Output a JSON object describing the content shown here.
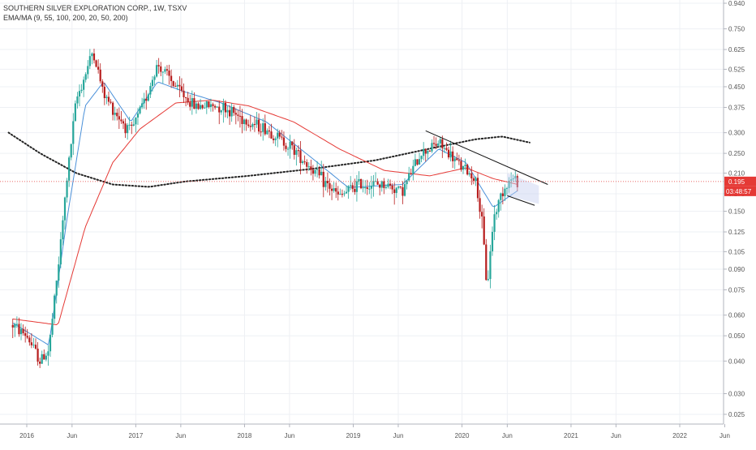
{
  "chart_data": {
    "type": "candlestick",
    "title": "SOUTHERN SILVER EXPLORATION CORP., 1W, TSXV",
    "indicator_label": "EMA/MA (9, 55, 100, 200, 20, 50, 200)",
    "y_scale": "log",
    "ylim": [
      0.023,
      0.95
    ],
    "y_ticks": [
      0.025,
      0.03,
      0.04,
      0.05,
      0.06,
      0.075,
      0.09,
      0.105,
      0.125,
      0.15,
      0.175,
      0.21,
      0.25,
      0.3,
      0.375,
      0.45,
      0.525,
      0.625,
      0.75,
      0.94
    ],
    "y_tick_labels": [
      "0.025",
      "0.030",
      "0.040",
      "0.050",
      "0.060",
      "0.075",
      "0.090",
      "0.105",
      "0.125",
      "0.150",
      "0.175",
      "0.210",
      "0.250",
      "0.300",
      "0.375",
      "0.450",
      "0.525",
      "0.625",
      "0.750",
      "0.940"
    ],
    "x_ticks": [
      {
        "label": "2016",
        "date": "2016-01-01"
      },
      {
        "label": "Jun",
        "date": "2016-06-01"
      },
      {
        "label": "2017",
        "date": "2017-01-01"
      },
      {
        "label": "Jun",
        "date": "2017-06-01"
      },
      {
        "label": "2018",
        "date": "2018-01-01"
      },
      {
        "label": "Jun",
        "date": "2018-06-01"
      },
      {
        "label": "2019",
        "date": "2019-01-01"
      },
      {
        "label": "Jun",
        "date": "2019-06-01"
      },
      {
        "label": "2020",
        "date": "2020-01-01"
      },
      {
        "label": "Jun",
        "date": "2020-06-01"
      },
      {
        "label": "2021",
        "date": "2021-01-01"
      },
      {
        "label": "Jun",
        "date": "2021-06-01"
      },
      {
        "label": "2022",
        "date": "2022-01-01"
      },
      {
        "label": "Jun",
        "date": "2022-06-01"
      }
    ],
    "last_price": 0.195,
    "last_price_label": "0.195",
    "countdown_label": "03:48:57",
    "colors": {
      "up": "#26a69a",
      "down": "#b71c1c",
      "ema_fast": "#4a90d9",
      "ma_slow": "#e53935",
      "ma_200": "#222222",
      "trendline": "#111111",
      "price_line": "#e53935",
      "channel_fill": "#c5cff0"
    },
    "price_path": [
      {
        "date": "2015-11-15",
        "price": 0.055
      },
      {
        "date": "2016-01-01",
        "price": 0.05
      },
      {
        "date": "2016-02-15",
        "price": 0.04
      },
      {
        "date": "2016-03-15",
        "price": 0.044
      },
      {
        "date": "2016-04-15",
        "price": 0.09
      },
      {
        "date": "2016-05-15",
        "price": 0.2
      },
      {
        "date": "2016-06-15",
        "price": 0.4
      },
      {
        "date": "2016-07-15",
        "price": 0.5
      },
      {
        "date": "2016-08-10",
        "price": 0.62
      },
      {
        "date": "2016-09-15",
        "price": 0.42
      },
      {
        "date": "2016-11-01",
        "price": 0.35
      },
      {
        "date": "2016-12-15",
        "price": 0.3
      },
      {
        "date": "2017-02-01",
        "price": 0.4
      },
      {
        "date": "2017-03-15",
        "price": 0.55
      },
      {
        "date": "2017-05-15",
        "price": 0.45
      },
      {
        "date": "2017-07-15",
        "price": 0.38
      },
      {
        "date": "2017-10-15",
        "price": 0.38
      },
      {
        "date": "2018-01-15",
        "price": 0.33
      },
      {
        "date": "2018-03-15",
        "price": 0.31
      },
      {
        "date": "2018-06-15",
        "price": 0.26
      },
      {
        "date": "2018-09-15",
        "price": 0.2
      },
      {
        "date": "2018-11-15",
        "price": 0.17
      },
      {
        "date": "2019-01-15",
        "price": 0.19
      },
      {
        "date": "2019-04-15",
        "price": 0.19
      },
      {
        "date": "2019-06-15",
        "price": 0.18
      },
      {
        "date": "2019-08-15",
        "price": 0.25
      },
      {
        "date": "2019-10-15",
        "price": 0.275
      },
      {
        "date": "2019-12-15",
        "price": 0.23
      },
      {
        "date": "2020-02-15",
        "price": 0.2
      },
      {
        "date": "2020-03-10",
        "price": 0.13
      },
      {
        "date": "2020-03-25",
        "price": 0.075
      },
      {
        "date": "2020-04-15",
        "price": 0.14
      },
      {
        "date": "2020-05-15",
        "price": 0.18
      },
      {
        "date": "2020-06-15",
        "price": 0.2
      },
      {
        "date": "2020-07-06",
        "price": 0.195
      }
    ],
    "ema_fast": [
      {
        "date": "2015-11-15",
        "price": 0.056
      },
      {
        "date": "2016-03-15",
        "price": 0.046
      },
      {
        "date": "2016-05-15",
        "price": 0.14
      },
      {
        "date": "2016-07-15",
        "price": 0.38
      },
      {
        "date": "2016-09-15",
        "price": 0.47
      },
      {
        "date": "2016-12-15",
        "price": 0.33
      },
      {
        "date": "2017-03-15",
        "price": 0.47
      },
      {
        "date": "2017-06-15",
        "price": 0.43
      },
      {
        "date": "2017-10-15",
        "price": 0.39
      },
      {
        "date": "2018-03-15",
        "price": 0.33
      },
      {
        "date": "2018-08-15",
        "price": 0.24
      },
      {
        "date": "2018-12-15",
        "price": 0.185
      },
      {
        "date": "2019-06-15",
        "price": 0.19
      },
      {
        "date": "2019-10-15",
        "price": 0.26
      },
      {
        "date": "2020-01-15",
        "price": 0.23
      },
      {
        "date": "2020-04-15",
        "price": 0.155
      },
      {
        "date": "2020-07-06",
        "price": 0.18
      }
    ],
    "ma_slow": [
      {
        "date": "2015-11-15",
        "price": 0.058
      },
      {
        "date": "2016-04-15",
        "price": 0.055
      },
      {
        "date": "2016-07-15",
        "price": 0.13
      },
      {
        "date": "2016-10-15",
        "price": 0.23
      },
      {
        "date": "2017-01-15",
        "price": 0.31
      },
      {
        "date": "2017-05-15",
        "price": 0.39
      },
      {
        "date": "2017-09-15",
        "price": 0.4
      },
      {
        "date": "2018-01-15",
        "price": 0.38
      },
      {
        "date": "2018-06-15",
        "price": 0.33
      },
      {
        "date": "2018-11-15",
        "price": 0.26
      },
      {
        "date": "2019-04-15",
        "price": 0.215
      },
      {
        "date": "2019-09-15",
        "price": 0.205
      },
      {
        "date": "2020-01-15",
        "price": 0.22
      },
      {
        "date": "2020-04-15",
        "price": 0.2
      },
      {
        "date": "2020-07-06",
        "price": 0.19
      }
    ],
    "ma_200": [
      {
        "date": "2015-11-01",
        "price": 0.3
      },
      {
        "date": "2016-02-15",
        "price": 0.25
      },
      {
        "date": "2016-06-15",
        "price": 0.21
      },
      {
        "date": "2016-10-15",
        "price": 0.19
      },
      {
        "date": "2017-02-15",
        "price": 0.186
      },
      {
        "date": "2017-06-15",
        "price": 0.195
      },
      {
        "date": "2018-01-15",
        "price": 0.205
      },
      {
        "date": "2018-08-15",
        "price": 0.218
      },
      {
        "date": "2019-03-15",
        "price": 0.235
      },
      {
        "date": "2019-10-15",
        "price": 0.265
      },
      {
        "date": "2020-02-15",
        "price": 0.283
      },
      {
        "date": "2020-05-15",
        "price": 0.29
      },
      {
        "date": "2020-08-15",
        "price": 0.275
      }
    ],
    "trendline_upper": [
      {
        "date": "2019-09-01",
        "price": 0.305
      },
      {
        "date": "2020-10-15",
        "price": 0.19
      }
    ],
    "trendline_lower": [
      {
        "date": "2020-06-01",
        "price": 0.172
      },
      {
        "date": "2020-09-01",
        "price": 0.158
      }
    ],
    "channel": [
      {
        "date": "2020-06-01",
        "price": 0.21
      },
      {
        "date": "2020-09-15",
        "price": 0.188
      },
      {
        "date": "2020-09-15",
        "price": 0.16
      },
      {
        "date": "2020-06-01",
        "price": 0.172
      }
    ]
  }
}
